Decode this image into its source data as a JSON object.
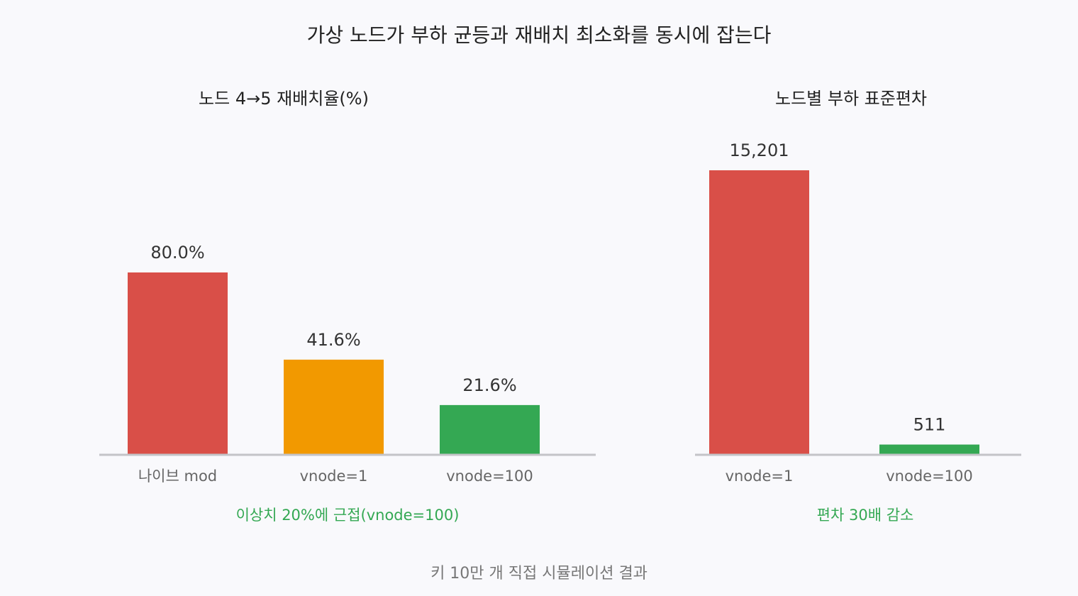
{
  "title": "가상 노드가 부하 균등과 재배치 최소화를 동시에 잡는다",
  "footer": "키 10만 개 직접 시뮬레이션 결과",
  "colors": {
    "axis": "#c4c4c8",
    "note": "#34a853"
  },
  "chart_data": [
    {
      "type": "bar",
      "title": "노드 4→5 재배치율(%)",
      "categories": [
        "나이브 mod",
        "vnode=1",
        "vnode=100"
      ],
      "values": [
        80.0,
        41.6,
        21.6
      ],
      "value_labels": [
        "80.0%",
        "41.6%",
        "21.6%"
      ],
      "colors": [
        "#d94f48",
        "#f29900",
        "#34a853"
      ],
      "ylim": [
        0,
        100
      ],
      "grid": false,
      "annotation": "이상치 20%에 근접(vnode=100)"
    },
    {
      "type": "bar",
      "title": "노드별 부하 표준편차",
      "categories": [
        "vnode=1",
        "vnode=100"
      ],
      "values": [
        15201,
        511
      ],
      "value_labels": [
        "15,201",
        "511"
      ],
      "colors": [
        "#d94f48",
        "#34a853"
      ],
      "ylim": [
        0,
        15201
      ],
      "grid": false,
      "annotation": "편차 30배 감소"
    }
  ]
}
